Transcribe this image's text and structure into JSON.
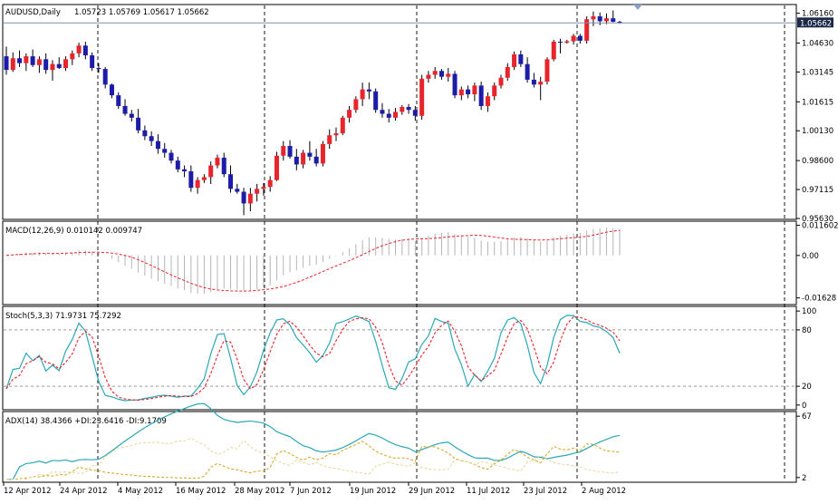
{
  "colors": {
    "bull": "#e8242c",
    "bear": "#1c1ca8",
    "frame": "#000000",
    "grid": "#000000",
    "macd_hist": "#b4b4b4",
    "macd_signal": "#e8242c",
    "stoch_main": "#2aa7b6",
    "stoch_signal": "#e8242c",
    "stoch_levels": "#9a9a9a",
    "adx": "#2aa7b6",
    "plus_di": "#d6a21a",
    "minus_di": "#e6d69a",
    "ask_line": "#7a8fb0",
    "price_tag_bg": "#1c2a4a",
    "price_tag_fg": "#ffffff",
    "shift_marker": "#8aa0c8"
  },
  "header": {
    "symbol_tf": "AUDUSD,Daily",
    "ohlc": "1.05723 1.05769 1.05617 1.05662"
  },
  "current_price_tag": "1.05662",
  "chart_data": [
    {
      "type": "candlestick",
      "title": "AUDUSD,Daily",
      "ylim": [
        0.9563,
        1.0656
      ],
      "yticks": [
        "1.06160",
        "1.04630",
        "1.03145",
        "1.01615",
        "1.00130",
        "0.98600",
        "0.97115",
        "0.95630"
      ],
      "ytick_values": [
        1.0616,
        1.0463,
        1.03145,
        1.01615,
        1.0013,
        0.986,
        0.97115,
        0.9563
      ],
      "current_price": 1.05662,
      "x_labels": [
        "12 Apr 2012",
        "24 Apr 2012",
        "4 May 2012",
        "16 May 2012",
        "28 May 2012",
        "7 Jun 2012",
        "19 Jun 2012",
        "29 Jun 2012",
        "11 Jul 2012",
        "23 Jul 2012",
        "2 Aug 2012"
      ],
      "candles": [
        [
          1.0395,
          1.0445,
          1.03,
          1.0325
        ],
        [
          1.0325,
          1.0415,
          1.0315,
          1.0385
        ],
        [
          1.0385,
          1.0425,
          1.034,
          1.036
        ],
        [
          1.036,
          1.041,
          1.032,
          1.0395
        ],
        [
          1.0395,
          1.043,
          1.034,
          1.035
        ],
        [
          1.035,
          1.0395,
          1.031,
          1.038
        ],
        [
          1.038,
          1.041,
          1.0305,
          1.0325
        ],
        [
          1.0325,
          1.0375,
          1.027,
          1.0355
        ],
        [
          1.0355,
          1.039,
          1.033,
          1.0335
        ],
        [
          1.0335,
          1.0395,
          1.032,
          1.038
        ],
        [
          1.038,
          1.0425,
          1.035,
          1.041
        ],
        [
          1.041,
          1.0465,
          1.039,
          1.045
        ],
        [
          1.045,
          1.047,
          1.038,
          1.04
        ],
        [
          1.04,
          1.0415,
          1.032,
          1.0335
        ],
        [
          1.0335,
          1.036,
          1.031,
          1.033
        ],
        [
          1.033,
          1.034,
          1.023,
          1.025
        ],
        [
          1.025,
          1.0255,
          1.018,
          1.0195
        ],
        [
          1.0195,
          1.021,
          1.0125,
          1.014
        ],
        [
          1.014,
          1.0175,
          1.009,
          1.01
        ],
        [
          1.01,
          1.012,
          1.006,
          1.008
        ],
        [
          1.008,
          1.0125,
          1.0,
          1.0015
        ],
        [
          1.0015,
          1.004,
          0.9965,
          0.9985
        ],
        [
          0.9985,
          1.001,
          0.9935,
          0.996
        ],
        [
          0.996,
          0.9995,
          0.9895,
          0.992
        ],
        [
          0.992,
          0.995,
          0.9875,
          0.99
        ],
        [
          0.99,
          0.9915,
          0.9845,
          0.986
        ],
        [
          0.986,
          0.988,
          0.98,
          0.9815
        ],
        [
          0.9815,
          0.9835,
          0.9775,
          0.9805
        ],
        [
          0.9805,
          0.9835,
          0.97,
          0.972
        ],
        [
          0.972,
          0.9775,
          0.969,
          0.976
        ],
        [
          0.976,
          0.979,
          0.9745,
          0.9775
        ],
        [
          0.9775,
          0.9855,
          0.974,
          0.9835
        ],
        [
          0.9835,
          0.989,
          0.982,
          0.9875
        ],
        [
          0.9875,
          0.99,
          0.9775,
          0.979
        ],
        [
          0.979,
          0.9835,
          0.9695,
          0.9715
        ],
        [
          0.9715,
          0.974,
          0.969,
          0.97
        ],
        [
          0.97,
          0.972,
          0.958,
          0.964
        ],
        [
          0.964,
          0.972,
          0.96,
          0.969
        ],
        [
          0.969,
          0.974,
          0.965,
          0.9715
        ],
        [
          0.9715,
          0.9745,
          0.968,
          0.9725
        ],
        [
          0.9725,
          0.978,
          0.97,
          0.976
        ],
        [
          0.976,
          0.9905,
          0.9755,
          0.9885
        ],
        [
          0.9885,
          0.996,
          0.986,
          0.9935
        ],
        [
          0.9935,
          0.9965,
          0.987,
          0.988
        ],
        [
          0.988,
          0.992,
          0.981,
          0.984
        ],
        [
          0.984,
          0.9915,
          0.982,
          0.99
        ],
        [
          0.99,
          0.996,
          0.986,
          0.988
        ],
        [
          0.988,
          0.992,
          0.983,
          0.9845
        ],
        [
          0.9845,
          0.996,
          0.983,
          0.9945
        ],
        [
          0.9945,
          1.002,
          0.992,
          0.999
        ],
        [
          0.999,
          1.003,
          0.996,
          1.0
        ],
        [
          1.0,
          1.009,
          0.999,
          1.008
        ],
        [
          1.008,
          1.014,
          1.0055,
          1.012
        ],
        [
          1.012,
          1.019,
          1.0105,
          1.0175
        ],
        [
          1.0175,
          1.026,
          1.014,
          1.0225
        ],
        [
          1.0225,
          1.026,
          1.0175,
          1.0215
        ],
        [
          1.0215,
          1.023,
          1.0105,
          1.012
        ],
        [
          1.012,
          1.0155,
          1.008,
          1.01
        ],
        [
          1.01,
          1.0125,
          1.0055,
          1.008
        ],
        [
          1.008,
          1.013,
          1.0065,
          1.011
        ],
        [
          1.011,
          1.0145,
          1.0095,
          1.0135
        ],
        [
          1.0135,
          1.015,
          1.01,
          1.012
        ],
        [
          1.012,
          1.014,
          1.0065,
          1.009
        ],
        [
          1.009,
          1.03,
          1.007,
          1.028
        ],
        [
          1.028,
          1.032,
          1.026,
          1.03
        ],
        [
          1.03,
          1.034,
          1.028,
          1.032
        ],
        [
          1.032,
          1.033,
          1.0275,
          1.029
        ],
        [
          1.029,
          1.0335,
          1.0265,
          1.0305
        ],
        [
          1.0305,
          1.032,
          1.018,
          1.0195
        ],
        [
          1.0195,
          1.024,
          1.017,
          1.0225
        ],
        [
          1.0225,
          1.0245,
          1.018,
          1.02
        ],
        [
          1.02,
          1.026,
          1.0165,
          1.0245
        ],
        [
          1.0245,
          1.0265,
          1.012,
          1.014
        ],
        [
          1.014,
          1.021,
          1.011,
          1.019
        ],
        [
          1.019,
          1.026,
          1.017,
          1.0245
        ],
        [
          1.0245,
          1.03,
          1.023,
          1.0285
        ],
        [
          1.0285,
          1.036,
          1.027,
          1.034
        ],
        [
          1.034,
          1.042,
          1.0325,
          1.0405
        ],
        [
          1.0405,
          1.0425,
          1.034,
          1.0355
        ],
        [
          1.0355,
          1.039,
          1.026,
          1.0275
        ],
        [
          1.0275,
          1.031,
          1.0235,
          1.025
        ],
        [
          1.025,
          1.029,
          1.017,
          1.0265
        ],
        [
          1.0265,
          1.039,
          1.025,
          1.038
        ],
        [
          1.038,
          1.048,
          1.037,
          1.047
        ],
        [
          1.047,
          1.0485,
          1.041,
          1.0465
        ],
        [
          1.0465,
          1.048,
          1.046,
          1.0472
        ],
        [
          1.0472,
          1.051,
          1.0455,
          1.05
        ],
        [
          1.05,
          1.051,
          1.046,
          1.0475
        ],
        [
          1.0475,
          1.06,
          1.046,
          1.0585
        ],
        [
          1.0585,
          1.0625,
          1.055,
          1.06
        ],
        [
          1.06,
          1.062,
          1.0555,
          1.0575
        ],
        [
          1.0575,
          1.0615,
          1.056,
          1.059
        ],
        [
          1.059,
          1.063,
          1.057,
          1.05723
        ],
        [
          1.05723,
          1.05769,
          1.05617,
          1.05662
        ]
      ]
    },
    {
      "type": "histogram",
      "title": "MACD(12,26,9) 0.010142 0.009747",
      "ylim": [
        -0.0185,
        0.0128
      ],
      "yticks": [
        "0.011602",
        "0.00",
        "-0.01628"
      ],
      "ytick_values": [
        0.011602,
        0.0,
        -0.01628
      ]
    },
    {
      "type": "line",
      "title": "Stoch(5,3,3) 71.9731 75.7292",
      "ylim": [
        -4,
        104
      ],
      "yticks": [
        "100",
        "80",
        "20",
        "0"
      ],
      "ytick_values": [
        100,
        80,
        20,
        0
      ],
      "levels": [
        80,
        20
      ]
    },
    {
      "type": "line",
      "title": "ADX(14) 38.4366 +DI:23.6416 -DI:9.1709",
      "ylim": [
        -2,
        71
      ],
      "yticks": [
        "67",
        "2"
      ],
      "ytick_values": [
        67,
        2
      ]
    }
  ]
}
